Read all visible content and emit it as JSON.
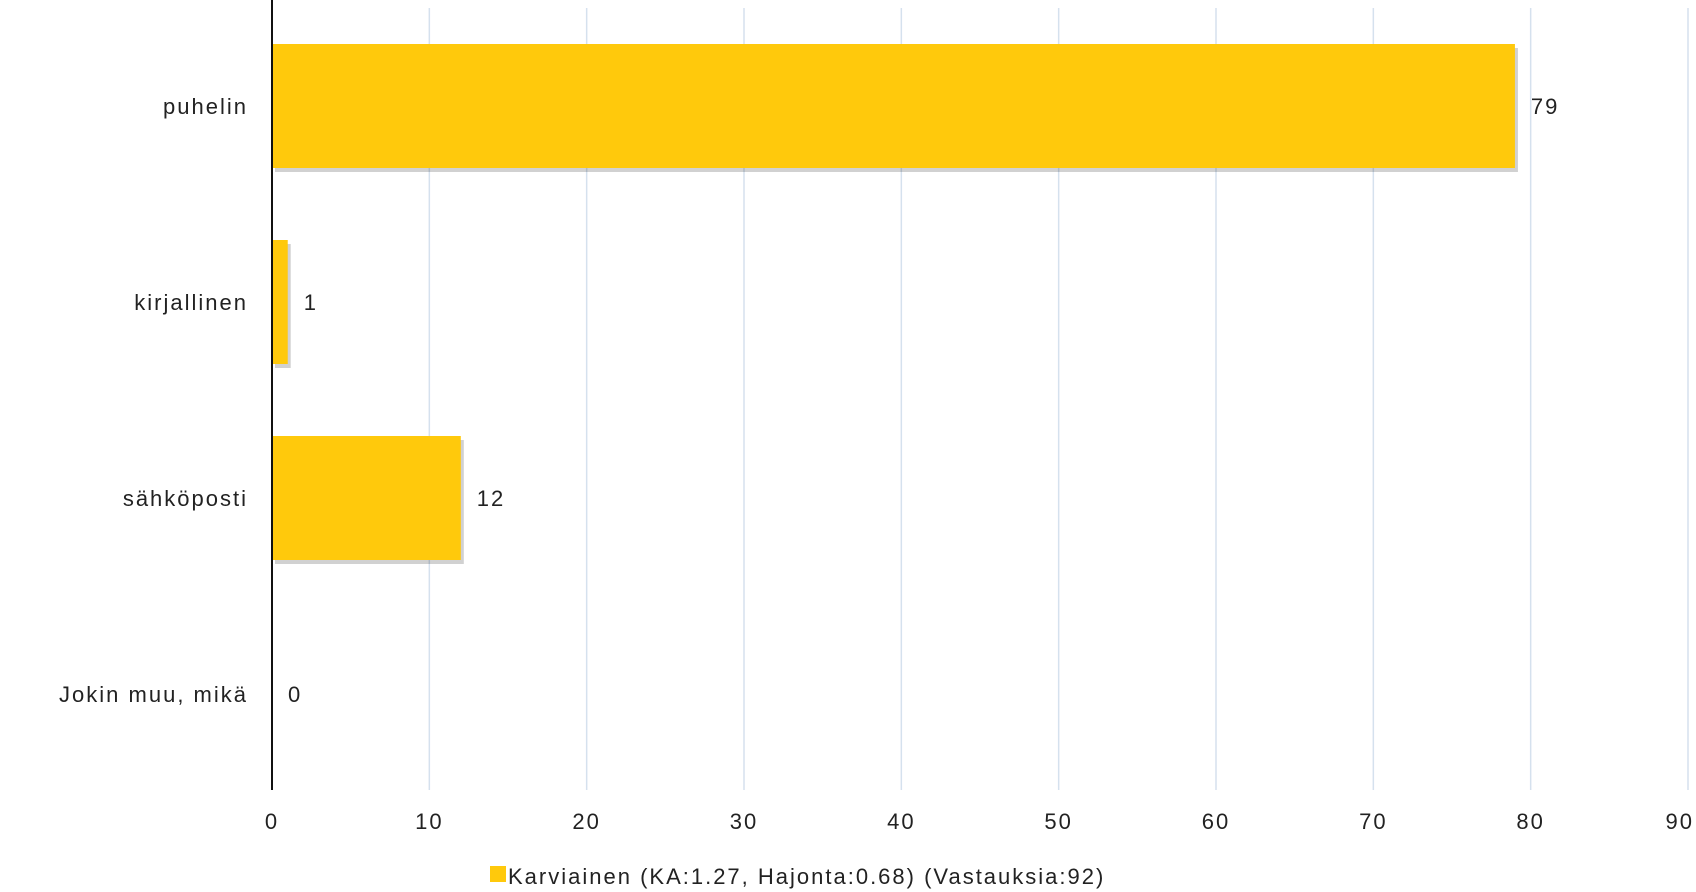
{
  "chart_data": {
    "type": "bar",
    "orientation": "horizontal",
    "categories": [
      "puhelin",
      "kirjallinen",
      "sähköposti",
      "Jokin muu, mikä"
    ],
    "series": [
      {
        "name": "Karviainen (KA:1.27, Hajonta:0.68) (Vastauksia:92)",
        "values": [
          79,
          1,
          12,
          0
        ],
        "color": "#FFC90C"
      }
    ],
    "data_labels": [
      "79",
      "1",
      "12",
      "0"
    ],
    "xlim": [
      0,
      90
    ],
    "x_ticks": [
      "0",
      "10",
      "20",
      "30",
      "40",
      "50",
      "60",
      "70",
      "80",
      "90"
    ],
    "grid": "vertical",
    "legend_position": "bottom-center",
    "title": "",
    "xlabel": "",
    "ylabel": ""
  }
}
